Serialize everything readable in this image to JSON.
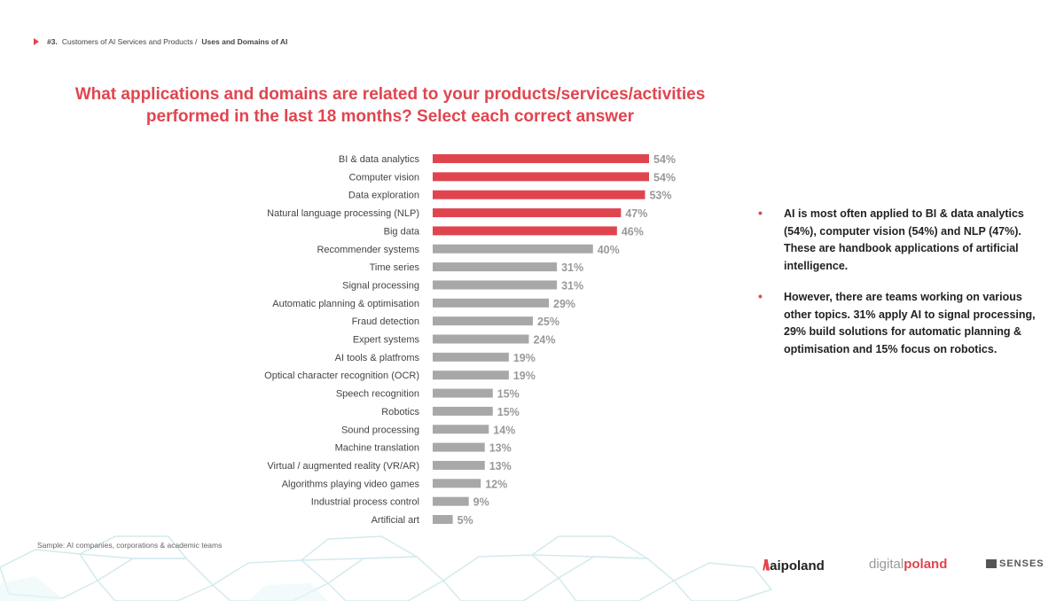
{
  "breadcrumb": {
    "section": "#3.",
    "path": "Customers of AI Services and Products /",
    "current": "Uses and Domains of AI"
  },
  "title": {
    "line1": "What applications and domains are related to your products/services/activities",
    "line2": "performed in the last 18 months? Select each correct answer"
  },
  "chart_data": {
    "type": "bar",
    "orientation": "horizontal",
    "value_suffix": "%",
    "xlim": [
      0,
      100
    ],
    "grid": false,
    "highlight_color": "#e0454f",
    "base_color": "#a8a8a8",
    "highlight_count": 5,
    "categories": [
      "BI & data analytics",
      "Computer vision",
      "Data exploration",
      "Natural language processing (NLP)",
      "Big data",
      "Recommender systems",
      "Time series",
      "Signal processing",
      "Automatic planning & optimisation",
      "Fraud detection",
      "Expert systems",
      "AI tools & platfroms",
      "Optical character recognition (OCR)",
      "Speech recognition",
      "Robotics",
      "Sound processing",
      "Machine translation",
      "Virtual / augmented reality (VR/AR)",
      "Algorithms playing video games",
      "Industrial process control",
      "Artificial art"
    ],
    "values": [
      54,
      54,
      53,
      47,
      46,
      40,
      31,
      31,
      29,
      25,
      24,
      19,
      19,
      15,
      15,
      14,
      13,
      13,
      12,
      9,
      5
    ]
  },
  "insights": [
    "AI is most often applied to BI & data analytics (54%), computer vision (54%) and NLP (47%). These are handbook applications of artificial intelligence.",
    "However, there are teams working on various other topics. 31% apply AI to signal processing, 29% build solutions for automatic planning & optimisation and 15% focus on robotics."
  ],
  "sample_note": "Sample: AI companies, corporations & academic teams",
  "logos": {
    "aipoland": "aipoland",
    "digitalpoland_prefix": "digital",
    "digitalpoland_suffix": "poland",
    "tensenses": "SENSES"
  }
}
